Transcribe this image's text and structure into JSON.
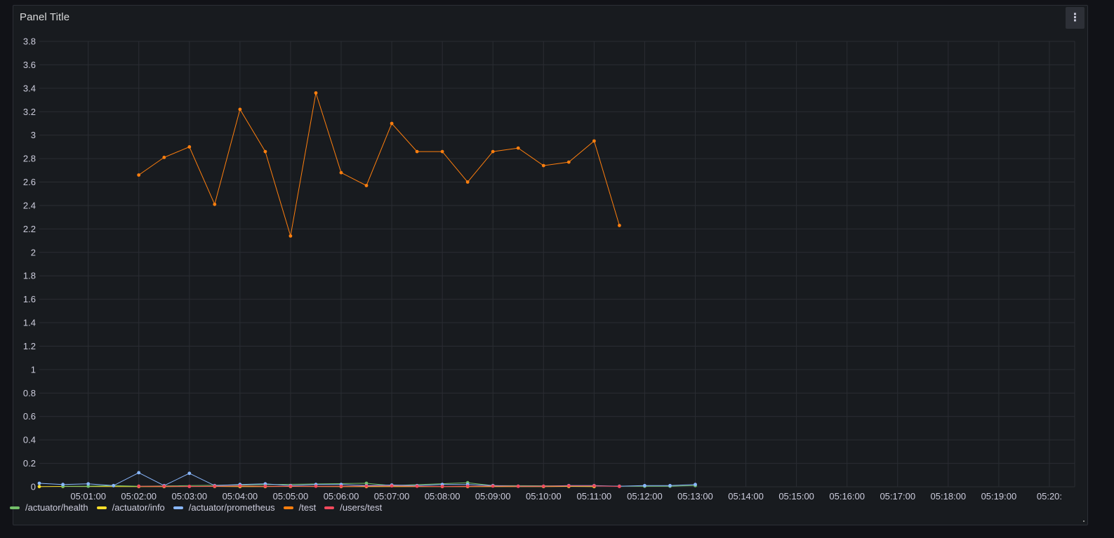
{
  "panel": {
    "title": "Panel Title",
    "menu_icon": "kebab-menu-icon"
  },
  "chart_data": {
    "type": "line",
    "title": "",
    "xlabel": "",
    "ylabel": "",
    "grid": true,
    "legend_placement": "bottom-left",
    "ylim": [
      0,
      3.8
    ],
    "y_ticks": [
      "0",
      "0.2",
      "0.4",
      "0.6",
      "0.8",
      "1",
      "1.2",
      "1.4",
      "1.6",
      "1.8",
      "2",
      "2.2",
      "2.4",
      "2.6",
      "2.8",
      "3",
      "3.2",
      "3.4",
      "3.6",
      "3.8"
    ],
    "y_tick_values": [
      0,
      0.2,
      0.4,
      0.6,
      0.8,
      1,
      1.2,
      1.4,
      1.6,
      1.8,
      2,
      2.2,
      2.4,
      2.6,
      2.8,
      3,
      3.2,
      3.4,
      3.6,
      3.8
    ],
    "xlim": [
      "05:00:02",
      "05:20:30"
    ],
    "x_ticks": [
      "05:01:00",
      "05:02:00",
      "05:03:00",
      "05:04:00",
      "05:05:00",
      "05:06:00",
      "05:07:00",
      "05:08:00",
      "05:09:00",
      "05:10:00",
      "05:11:00",
      "05:12:00",
      "05:13:00",
      "05:14:00",
      "05:15:00",
      "05:16:00",
      "05:17:00",
      "05:18:00",
      "05:19:00",
      "05:20:"
    ],
    "x_tick_times": [
      "05:01:00",
      "05:02:00",
      "05:03:00",
      "05:04:00",
      "05:05:00",
      "05:06:00",
      "05:07:00",
      "05:08:00",
      "05:09:00",
      "05:10:00",
      "05:11:00",
      "05:12:00",
      "05:13:00",
      "05:14:00",
      "05:15:00",
      "05:16:00",
      "05:17:00",
      "05:18:00",
      "05:19:00",
      "05:20:00"
    ],
    "series": [
      {
        "name": "/actuator/health",
        "color": "#73bf69",
        "x": [
          "05:00:30",
          "05:01:00",
          "05:01:30",
          "05:02:00",
          "05:06:30",
          "05:07:00",
          "05:08:30",
          "05:09:00",
          "05:12:00",
          "05:12:30",
          "05:13:00"
        ],
        "y": [
          0.005,
          0.005,
          0.01,
          0.005,
          0.03,
          0.01,
          0.035,
          0.01,
          0.005,
          0.005,
          0.01
        ]
      },
      {
        "name": "/actuator/info",
        "color": "#fade2a",
        "x": [
          "05:00:02",
          "05:00:30",
          "05:02:00",
          "05:02:30",
          "05:03:30",
          "05:04:00",
          "05:04:30",
          "05:05:00",
          "05:06:00",
          "05:06:30",
          "05:08:00",
          "05:08:30",
          "05:10:00",
          "05:10:30",
          "05:11:00"
        ],
        "y": [
          0.002,
          0.003,
          0.002,
          0.002,
          0.003,
          0.002,
          0.002,
          0.003,
          0.002,
          0.002,
          0.002,
          0.002,
          0.002,
          0.003,
          0.002
        ]
      },
      {
        "name": "/actuator/prometheus",
        "color": "#8ab8ff",
        "x": [
          "05:00:02",
          "05:00:30",
          "05:01:00",
          "05:01:30",
          "05:02:00",
          "05:02:30",
          "05:03:00",
          "05:03:30",
          "05:04:00",
          "05:04:30",
          "05:05:00",
          "05:05:30",
          "05:06:00",
          "05:06:30",
          "05:07:00",
          "05:07:30",
          "05:08:00",
          "05:08:30",
          "05:09:00",
          "05:09:30",
          "05:10:00",
          "05:10:30",
          "05:11:00",
          "05:11:30",
          "05:12:00",
          "05:12:30",
          "05:13:00"
        ],
        "y": [
          0.03,
          0.02,
          0.025,
          0.01,
          0.12,
          0.01,
          0.115,
          0.01,
          0.02,
          0.025,
          0.01,
          0.02,
          0.02,
          0.01,
          0.015,
          0.01,
          0.02,
          0.02,
          0.01,
          0.005,
          0.005,
          0.01,
          0.01,
          0.005,
          0.01,
          0.01,
          0.02
        ]
      },
      {
        "name": "/test",
        "color": "#ff7f0e",
        "x": [
          "05:02:00",
          "05:02:30",
          "05:03:00",
          "05:03:30",
          "05:04:00",
          "05:04:30",
          "05:05:00",
          "05:05:30",
          "05:06:00",
          "05:06:30",
          "05:07:00",
          "05:07:30",
          "05:08:00",
          "05:08:30",
          "05:09:00",
          "05:09:30",
          "05:10:00",
          "05:10:30",
          "05:11:00",
          "05:11:30"
        ],
        "y": [
          2.66,
          2.81,
          2.9,
          2.41,
          3.22,
          2.86,
          2.14,
          3.36,
          2.68,
          2.57,
          3.1,
          2.86,
          2.86,
          2.6,
          2.86,
          2.89,
          2.74,
          2.77,
          2.95,
          2.23
        ]
      },
      {
        "name": "/users/test",
        "color": "#f2495c",
        "x": [
          "05:02:00",
          "05:02:30",
          "05:03:00",
          "05:03:30",
          "05:04:00",
          "05:04:30",
          "05:05:00",
          "05:05:30",
          "05:06:00",
          "05:06:30",
          "05:07:00",
          "05:07:30",
          "05:08:00",
          "05:08:30",
          "05:09:00",
          "05:09:30",
          "05:10:00",
          "05:10:30",
          "05:11:00",
          "05:11:30"
        ],
        "y": [
          0.005,
          0.005,
          0.003,
          0.005,
          0.008,
          0.005,
          0.005,
          0.005,
          0.004,
          0.006,
          0.008,
          0.005,
          0.003,
          0.005,
          0.006,
          0.004,
          0.004,
          0.008,
          0.008,
          0.003
        ]
      }
    ]
  }
}
